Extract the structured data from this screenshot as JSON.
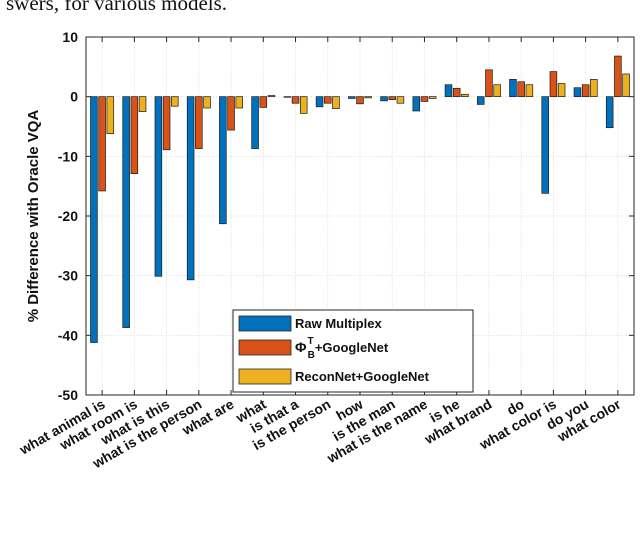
{
  "caption": "swers, for various models.",
  "chart_data": {
    "type": "bar",
    "title": "",
    "xlabel": "",
    "ylabel": "% Difference with Oracle VQA",
    "ylim": [
      -50,
      10
    ],
    "yticks": [
      10,
      0,
      -10,
      -20,
      -30,
      -40,
      -50
    ],
    "grid": true,
    "legend_position": "bottom-center",
    "categories": [
      "what animal is",
      "what room is",
      "what is this",
      "what is the person",
      "what are",
      "what",
      "is that a",
      "is the person",
      "how",
      "is the man",
      "what is the name",
      "is he",
      "what brand",
      "do",
      "what color is",
      "do you",
      "what color"
    ],
    "series": [
      {
        "name": "Raw Multiplex",
        "color": "#0072BD",
        "values": [
          -41.2,
          -38.7,
          -30.1,
          -30.7,
          -21.3,
          -8.7,
          -0.1,
          -1.7,
          -0.3,
          -0.7,
          -2.4,
          2.0,
          -1.3,
          2.9,
          -16.2,
          1.5,
          -5.2
        ]
      },
      {
        "name": "+GoogleNet",
        "color": "#D95319",
        "values": [
          -15.8,
          -12.9,
          -8.9,
          -8.7,
          -5.6,
          -1.8,
          -1.1,
          -1.1,
          -1.2,
          -0.5,
          -0.8,
          1.4,
          4.5,
          2.5,
          4.2,
          2.0,
          6.8
        ]
      },
      {
        "name": "ReconNet+GoogleNet",
        "color": "#EDB120",
        "values": [
          -6.2,
          -2.5,
          -1.6,
          -1.9,
          -1.9,
          0.2,
          -2.8,
          -2.0,
          -0.2,
          -1.1,
          -0.3,
          0.4,
          2.0,
          2.0,
          2.2,
          2.9,
          3.8
        ]
      }
    ],
    "legend_math": {
      "symbol": "Φ",
      "superscript": "T",
      "subscript": "B"
    }
  }
}
